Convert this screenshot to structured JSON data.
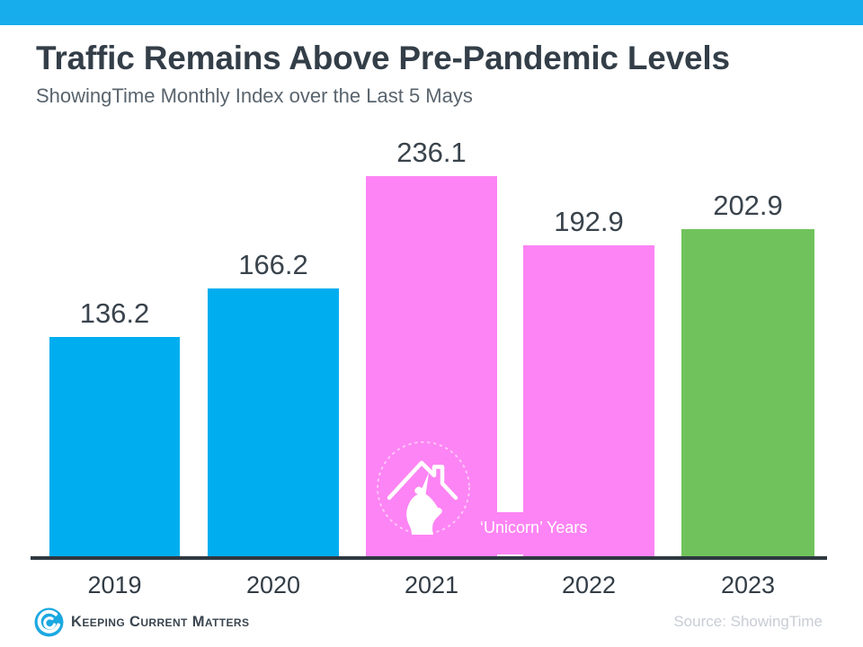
{
  "header": {
    "title": "Traffic Remains Above Pre-Pandemic Levels",
    "subtitle": "ShowingTime Monthly Index over the Last 5 Mays",
    "title_color": "#333e48",
    "subtitle_color": "#59646d",
    "top_bar_color": "#17acec"
  },
  "chart_data": {
    "type": "bar",
    "categories": [
      "2019",
      "2020",
      "2021",
      "2022",
      "2023"
    ],
    "values": [
      136.2,
      166.2,
      236.1,
      192.9,
      202.9
    ],
    "value_labels": [
      "136.2",
      "166.2",
      "236.1",
      "192.9",
      "202.9"
    ],
    "bar_colors": [
      "#00aeef",
      "#00aeef",
      "#fd84f4",
      "#fd84f4",
      "#70c35c"
    ],
    "title": "Traffic Remains Above Pre-Pandemic Levels",
    "xlabel": "",
    "ylabel": "",
    "ylim": [
      0,
      236.1
    ],
    "grid": false,
    "legend": false,
    "annotation": {
      "label": "‘Unicorn’ Years",
      "applies_to": [
        "2021",
        "2022"
      ],
      "icon": "unicorn-house-icon",
      "text_color": "#ffffff"
    }
  },
  "footer": {
    "brand": "Keeping Current Matters",
    "logo_icon": "kcm-swirl-logo",
    "source": "Source: ShowingTime"
  }
}
